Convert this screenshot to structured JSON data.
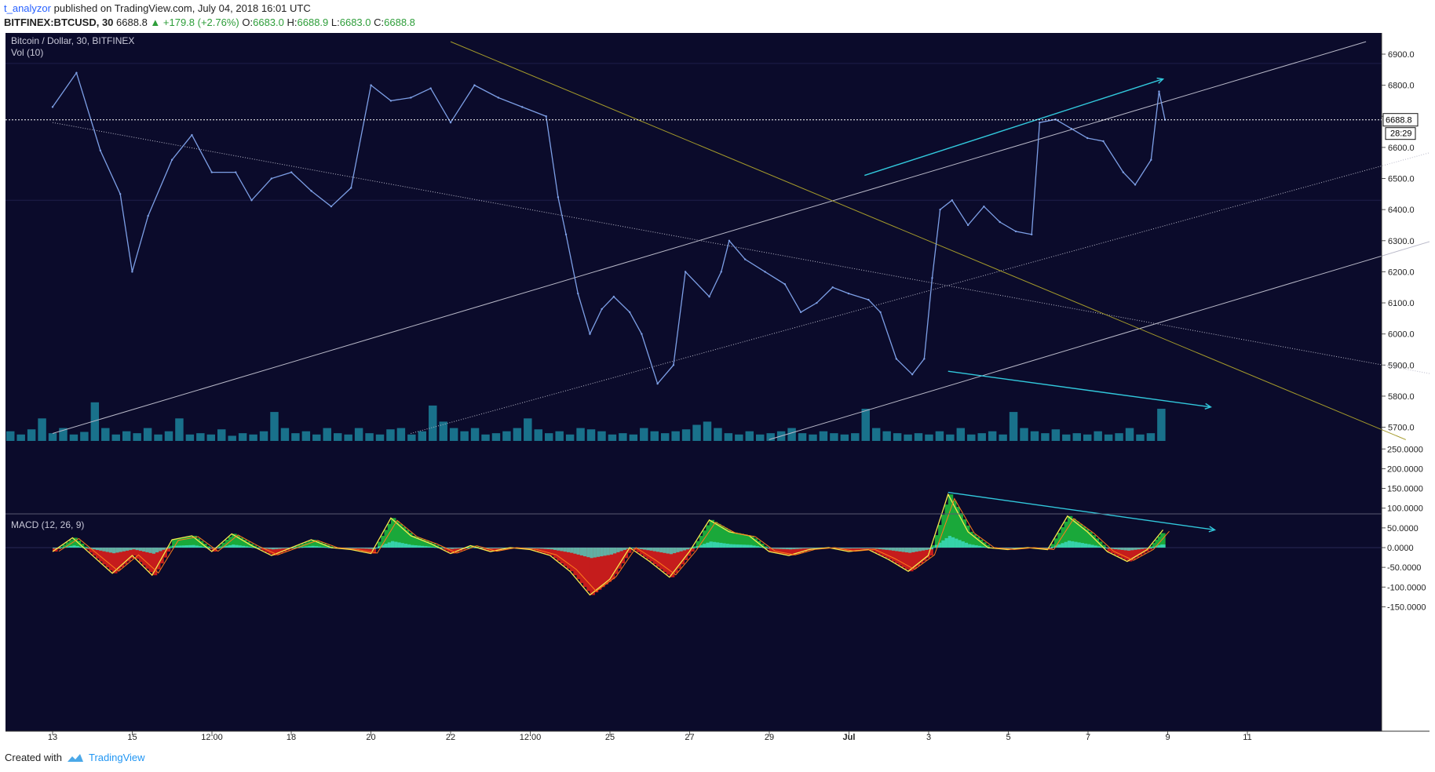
{
  "header": {
    "author": "t_analyzor",
    "published_text": "published on TradingView.com, July 04, 2018 16:01 UTC",
    "symbol": "BITFINEX:BTCUSD, 30",
    "last": "6688.8",
    "change": "▲ +179.8 (+2.76%)",
    "o_label": "O:",
    "o": "6683.0",
    "h_label": "H:",
    "h": "6688.9",
    "l_label": "L:",
    "l": "6683.0",
    "c_label": "C:",
    "c": "6688.8"
  },
  "chart_title": "Bitcoin / Dollar, 30, BITFINEX",
  "volume_label": "Vol (10)",
  "macd_label": "MACD (12, 26, 9)",
  "price_badge": "6688.8",
  "countdown_badge": "28:29",
  "colors": {
    "background": "#0b0b2b",
    "candle": "#7d9fe6",
    "volume": "#26c6da",
    "trendline_white": "#b8b8c8",
    "trendline_yellow": "#a59b2b",
    "annotation": "#32c8dc",
    "macd_pos": "#1aa83a",
    "macd_neg": "#c51c1c",
    "macd_hist": "#40e0d0"
  },
  "chart_data": [
    {
      "type": "line",
      "name": "BTCUSD 30m price",
      "x_ticks": [
        "13",
        "15",
        "12:00",
        "18",
        "20",
        "22",
        "12:00",
        "25",
        "27",
        "29",
        "Jul",
        "3",
        "5",
        "7",
        "9",
        "11"
      ],
      "y_ticks": [
        "6900.0",
        "6800.0",
        "6700.0",
        "6600.0",
        "6500.0",
        "6400.0",
        "6300.0",
        "6200.0",
        "6100.0",
        "6000.0",
        "5900.0",
        "5800.0",
        "5700.0"
      ],
      "ylim": [
        5660,
        6940
      ],
      "last_price": 6688.8,
      "series": [
        {
          "name": "price",
          "points": [
            [
              0,
              6730
            ],
            [
              0.6,
              6840
            ],
            [
              1.2,
              6590
            ],
            [
              1.7,
              6450
            ],
            [
              2.0,
              6200
            ],
            [
              2.4,
              6380
            ],
            [
              3.0,
              6560
            ],
            [
              3.5,
              6640
            ],
            [
              4.0,
              6520
            ],
            [
              4.6,
              6520
            ],
            [
              5.0,
              6430
            ],
            [
              5.5,
              6500
            ],
            [
              6.0,
              6520
            ],
            [
              6.5,
              6460
            ],
            [
              7.0,
              6410
            ],
            [
              7.5,
              6470
            ],
            [
              8.0,
              6800
            ],
            [
              8.5,
              6750
            ],
            [
              9.0,
              6760
            ],
            [
              9.5,
              6790
            ],
            [
              10.0,
              6680
            ],
            [
              10.6,
              6800
            ],
            [
              11.2,
              6760
            ],
            [
              11.8,
              6730
            ],
            [
              12.4,
              6700
            ],
            [
              12.7,
              6440
            ],
            [
              12.9,
              6320
            ],
            [
              13.2,
              6130
            ],
            [
              13.5,
              6000
            ],
            [
              13.8,
              6080
            ],
            [
              14.1,
              6120
            ],
            [
              14.5,
              6070
            ],
            [
              14.8,
              6000
            ],
            [
              15.2,
              5840
            ],
            [
              15.6,
              5900
            ],
            [
              15.9,
              6200
            ],
            [
              16.5,
              6120
            ],
            [
              16.8,
              6200
            ],
            [
              17.0,
              6300
            ],
            [
              17.4,
              6240
            ],
            [
              17.9,
              6200
            ],
            [
              18.4,
              6160
            ],
            [
              18.8,
              6070
            ],
            [
              19.2,
              6100
            ],
            [
              19.6,
              6150
            ],
            [
              20.0,
              6130
            ],
            [
              20.5,
              6110
            ],
            [
              20.8,
              6070
            ],
            [
              21.2,
              5920
            ],
            [
              21.6,
              5870
            ],
            [
              21.9,
              5920
            ],
            [
              22.1,
              6180
            ],
            [
              22.3,
              6400
            ],
            [
              22.6,
              6430
            ],
            [
              23.0,
              6350
            ],
            [
              23.4,
              6410
            ],
            [
              23.8,
              6360
            ],
            [
              24.2,
              6330
            ],
            [
              24.6,
              6320
            ],
            [
              24.8,
              6680
            ],
            [
              25.2,
              6690
            ],
            [
              25.6,
              6660
            ],
            [
              26.0,
              6630
            ],
            [
              26.4,
              6620
            ],
            [
              26.9,
              6520
            ],
            [
              27.2,
              6480
            ],
            [
              27.6,
              6560
            ],
            [
              27.8,
              6780
            ],
            [
              27.95,
              6688.8
            ]
          ]
        }
      ],
      "trendlines": [
        {
          "name": "descending resistance (dotted)",
          "from": [
            0,
            6680
          ],
          "to": [
            36,
            5840
          ]
        },
        {
          "name": "rising channel upper",
          "from": [
            0,
            5680
          ],
          "to": [
            33,
            6940
          ]
        },
        {
          "name": "rising channel middle (dotted)",
          "from": [
            9,
            5680
          ],
          "to": [
            36.5,
            6650
          ]
        },
        {
          "name": "rising channel lower",
          "from": [
            18,
            5660
          ],
          "to": [
            36.5,
            6370
          ]
        },
        {
          "name": "yellow descending line",
          "from": [
            10,
            6940
          ],
          "to": [
            34,
            5660
          ]
        }
      ],
      "annotations": [
        {
          "name": "price higher-high arrow",
          "from": [
            20.4,
            6510
          ],
          "to": [
            27.9,
            6820
          ]
        },
        {
          "name": "volume lower arrow",
          "from": [
            22.5,
            5880
          ],
          "to": [
            29.1,
            5765
          ]
        }
      ]
    },
    {
      "type": "bar",
      "name": "Vol (10)",
      "x_range": [
        0,
        28
      ],
      "values_relative": [
        0.15,
        0.1,
        0.18,
        0.35,
        0.12,
        0.2,
        0.1,
        0.14,
        0.6,
        0.2,
        0.1,
        0.15,
        0.12,
        0.2,
        0.1,
        0.15,
        0.35,
        0.1,
        0.12,
        0.1,
        0.18,
        0.08,
        0.12,
        0.1,
        0.15,
        0.45,
        0.2,
        0.12,
        0.15,
        0.1,
        0.2,
        0.12,
        0.1,
        0.2,
        0.12,
        0.1,
        0.18,
        0.2,
        0.1,
        0.15,
        0.55,
        0.3,
        0.2,
        0.15,
        0.2,
        0.1,
        0.12,
        0.15,
        0.2,
        0.35,
        0.18,
        0.12,
        0.15,
        0.1,
        0.2,
        0.18,
        0.15,
        0.1,
        0.12,
        0.1,
        0.2,
        0.15,
        0.12,
        0.15,
        0.18,
        0.25,
        0.3,
        0.2,
        0.12,
        0.1,
        0.15,
        0.1,
        0.12,
        0.15,
        0.2,
        0.12,
        0.1,
        0.15,
        0.12,
        0.1,
        0.12,
        0.5,
        0.2,
        0.15,
        0.12,
        0.1,
        0.12,
        0.1,
        0.15,
        0.1,
        0.2,
        0.1,
        0.12,
        0.15,
        0.1,
        0.45,
        0.2,
        0.15,
        0.12,
        0.18,
        0.1,
        0.12,
        0.1,
        0.15,
        0.1,
        0.12,
        0.2,
        0.1,
        0.12,
        0.5
      ]
    },
    {
      "type": "line",
      "name": "MACD (12, 26, 9)",
      "y_ticks": [
        "250.0000",
        "200.0000",
        "150.0000",
        "100.0000",
        "50.0000",
        "0.0000",
        "-50.0000",
        "-100.0000",
        "-150.0000"
      ],
      "ylim": [
        -190,
        260
      ],
      "series": [
        {
          "name": "macd",
          "points": [
            [
              0,
              -10
            ],
            [
              0.5,
              25
            ],
            [
              1.0,
              -20
            ],
            [
              1.5,
              -65
            ],
            [
              2.0,
              -20
            ],
            [
              2.5,
              -70
            ],
            [
              3.0,
              20
            ],
            [
              3.5,
              30
            ],
            [
              4.0,
              -10
            ],
            [
              4.5,
              35
            ],
            [
              5.0,
              5
            ],
            [
              5.5,
              -20
            ],
            [
              6.0,
              0
            ],
            [
              6.5,
              20
            ],
            [
              7.0,
              0
            ],
            [
              7.5,
              -5
            ],
            [
              8.0,
              -15
            ],
            [
              8.5,
              75
            ],
            [
              9.0,
              30
            ],
            [
              9.5,
              10
            ],
            [
              10.0,
              -15
            ],
            [
              10.5,
              5
            ],
            [
              11.0,
              -10
            ],
            [
              11.5,
              0
            ],
            [
              12.0,
              -5
            ],
            [
              12.5,
              -20
            ],
            [
              13.0,
              -60
            ],
            [
              13.5,
              -120
            ],
            [
              14.0,
              -80
            ],
            [
              14.5,
              0
            ],
            [
              15.0,
              -35
            ],
            [
              15.5,
              -75
            ],
            [
              16.0,
              -10
            ],
            [
              16.5,
              70
            ],
            [
              17.0,
              40
            ],
            [
              17.5,
              30
            ],
            [
              18.0,
              -10
            ],
            [
              18.5,
              -20
            ],
            [
              19.0,
              -5
            ],
            [
              19.5,
              0
            ],
            [
              20.0,
              -10
            ],
            [
              20.5,
              -5
            ],
            [
              21.0,
              -30
            ],
            [
              21.5,
              -60
            ],
            [
              22.0,
              -20
            ],
            [
              22.5,
              135
            ],
            [
              23.0,
              40
            ],
            [
              23.5,
              0
            ],
            [
              24.0,
              -5
            ],
            [
              24.5,
              0
            ],
            [
              25.0,
              -5
            ],
            [
              25.5,
              80
            ],
            [
              26.0,
              40
            ],
            [
              26.5,
              -10
            ],
            [
              27.0,
              -35
            ],
            [
              27.5,
              -5
            ],
            [
              27.9,
              45
            ]
          ]
        }
      ],
      "annotations": [
        {
          "name": "macd lower-high arrow",
          "from": [
            22.5,
            140
          ],
          "to": [
            29.2,
            45
          ]
        }
      ]
    }
  ]
}
